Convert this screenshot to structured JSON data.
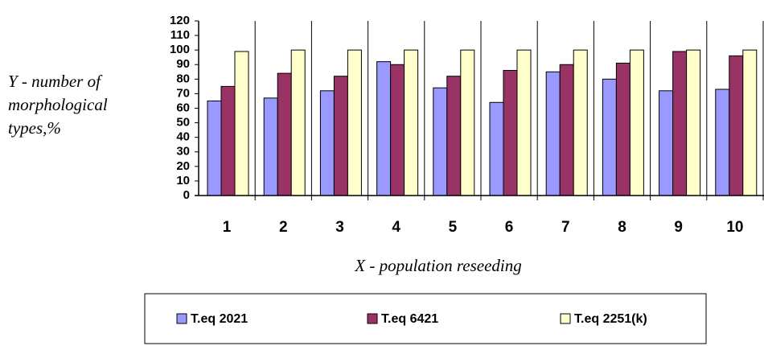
{
  "chart_data": {
    "type": "bar",
    "ylabel": [
      "Y - number of",
      "morphological",
      "types,%"
    ],
    "xlabel": "X - population reseeding",
    "categories": [
      "1",
      "2",
      "3",
      "4",
      "5",
      "6",
      "7",
      "8",
      "9",
      "10"
    ],
    "series": [
      {
        "name": "T.eq 2021",
        "color": "#9999ff",
        "values": [
          65,
          67,
          72,
          92,
          74,
          64,
          85,
          80,
          72,
          73
        ]
      },
      {
        "name": "T.eq 6421",
        "color": "#993366",
        "values": [
          75,
          84,
          82,
          90,
          82,
          86,
          90,
          91,
          99,
          96
        ]
      },
      {
        "name": "T.eq 2251(k)",
        "color": "#ffffcc",
        "values": [
          99,
          100,
          100,
          100,
          100,
          100,
          100,
          100,
          100,
          100
        ]
      }
    ],
    "ylim": [
      0,
      120
    ],
    "yticks": [
      0,
      10,
      20,
      30,
      40,
      50,
      60,
      70,
      80,
      90,
      100,
      110,
      120
    ],
    "legend": "bottom"
  }
}
